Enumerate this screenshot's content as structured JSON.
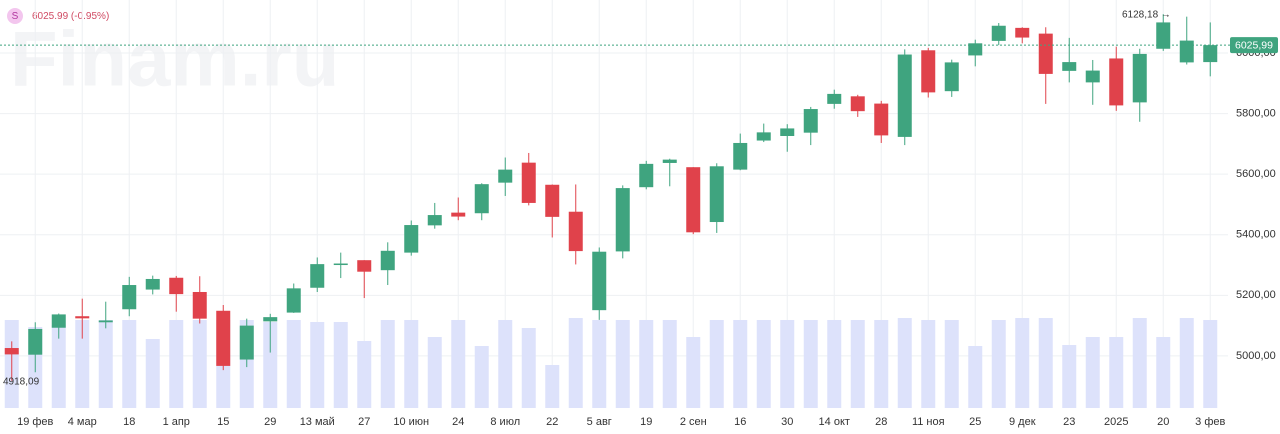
{
  "header": {
    "symbol": "S",
    "quote": "6025.99 (-0.95%)",
    "watermark": "Finam.ru"
  },
  "chart_data": {
    "type": "candlestick",
    "categories": [
      null,
      "19 фев",
      null,
      "4 мар",
      null,
      "18",
      null,
      "1 апр",
      null,
      "15",
      null,
      "29",
      null,
      "13 май",
      null,
      "27",
      null,
      "10 июн",
      null,
      "24",
      null,
      "8 июл",
      null,
      "22",
      null,
      "5 авг",
      null,
      "19",
      null,
      "2 сен",
      null,
      "16",
      null,
      "30",
      null,
      "14 окт",
      null,
      "28",
      null,
      "11 ноя",
      null,
      "25",
      null,
      "9 дек",
      null,
      "23",
      null,
      "2025",
      null,
      "20",
      null,
      "3 фев"
    ],
    "open": [
      5026,
      5004,
      5093,
      5131,
      5111,
      5154,
      5219,
      5258,
      5211,
      5149,
      4988,
      5114,
      5143,
      5225,
      5300,
      5316,
      5283,
      5341,
      5431,
      5473,
      5471,
      5572,
      5638,
      5565,
      5476,
      5151,
      5345,
      5557,
      5637,
      5623,
      5442,
      5615,
      5711,
      5726,
      5737,
      5832,
      5857,
      5833,
      5723,
      6009,
      5874,
      5992,
      6040,
      6083,
      6064,
      5941,
      5903,
      5982,
      5837,
      6014,
      5969,
      5970
    ],
    "high": [
      5048,
      5111,
      5140,
      5189,
      5179,
      5261,
      5265,
      5264,
      5263,
      5168,
      5123,
      5139,
      5239,
      5325,
      5341,
      5316,
      5375,
      5447,
      5505,
      5523,
      5570,
      5655,
      5670,
      5566,
      5566,
      5358,
      5563,
      5644,
      5651,
      5623,
      5636,
      5734,
      5767,
      5765,
      5822,
      5879,
      5862,
      5842,
      6012,
      6017,
      5978,
      6044,
      6099,
      6085,
      6085,
      6050,
      5977,
      6021,
      6014,
      6128.18,
      6120,
      6101
    ],
    "low": [
      4918.09,
      4946,
      5057,
      5057,
      5091,
      5131,
      5203,
      5146,
      5107,
      4953,
      4963,
      5011,
      5142,
      5211,
      5257,
      5191,
      5234,
      5331,
      5420,
      5448,
      5448,
      5528,
      5497,
      5391,
      5302,
      5119,
      5322,
      5550,
      5560,
      5402,
      5406,
      5613,
      5706,
      5674,
      5696,
      5816,
      5789,
      5703,
      5696,
      5853,
      5855,
      5956,
      6026,
      6032,
      5832,
      5903,
      5829,
      5809,
      5773,
      6007,
      5962,
      5923
    ],
    "close": [
      5005,
      5089,
      5137,
      5124,
      5117,
      5234,
      5254,
      5204,
      5123,
      4967,
      5100,
      5128,
      5223,
      5303,
      5305,
      5278,
      5347,
      5432,
      5465,
      5460,
      5567,
      5615,
      5505,
      5459,
      5346,
      5344,
      5554,
      5634,
      5648,
      5408,
      5626,
      5703,
      5738,
      5751,
      5815,
      5865,
      5808,
      5728,
      5995,
      5870,
      5969,
      6032,
      6090,
      6051,
      5931,
      5970,
      5942,
      5827,
      5997,
      6101,
      6041,
      6025.99
    ],
    "volume": [
      88,
      81,
      83,
      88,
      88,
      88,
      69,
      88,
      88,
      88,
      88,
      86,
      88,
      86,
      86,
      67,
      88,
      88,
      71,
      88,
      62,
      88,
      80,
      43,
      90,
      88,
      88,
      88,
      88,
      71,
      88,
      88,
      88,
      88,
      88,
      88,
      88,
      88,
      90,
      88,
      88,
      62,
      88,
      90,
      90,
      63,
      71,
      71,
      90,
      71,
      90,
      88
    ],
    "up_color": "#3fa47f",
    "down_color": "#e0424b",
    "volume_color": "#dde2fb",
    "ylim": [
      4828,
      6175
    ],
    "yticks": [
      {
        "value": 5000,
        "label": "5000,00"
      },
      {
        "value": 5200,
        "label": "5200,00"
      },
      {
        "value": 5400,
        "label": "5400,00"
      },
      {
        "value": 5600,
        "label": "5600,00"
      },
      {
        "value": 5800,
        "label": "5800,00"
      },
      {
        "value": 6000,
        "label": "6000,00"
      }
    ],
    "grid": true,
    "last_price": {
      "value": 6025.99,
      "label": "6025,99"
    },
    "annotations": [
      "6128,18 →",
      "4918,09"
    ]
  }
}
